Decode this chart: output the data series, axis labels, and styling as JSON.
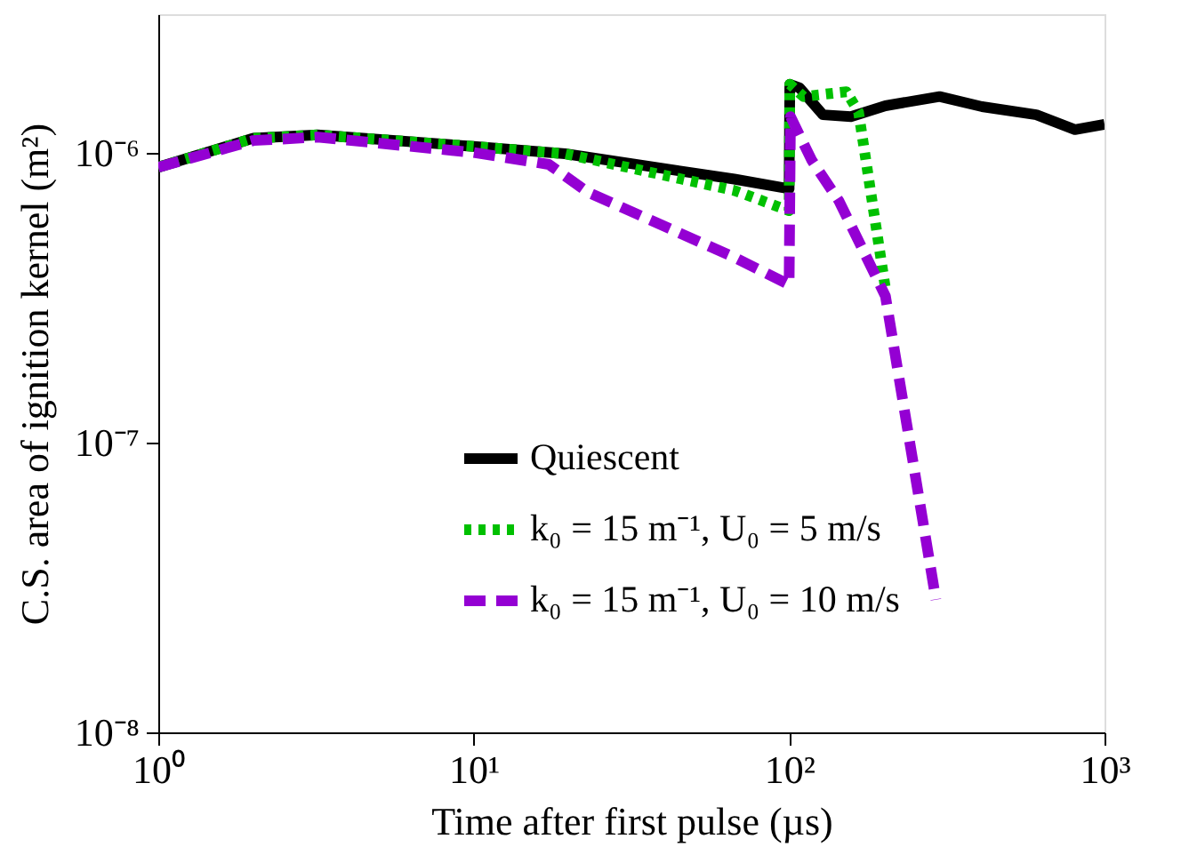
{
  "chart_data": {
    "type": "line",
    "xlabel": "Time after first pulse (µs)",
    "ylabel": "C.S. area of ignition kernel (m²)",
    "log": "xy",
    "xlim": [
      1,
      1000
    ],
    "ylim": [
      1e-08,
      3e-06
    ],
    "xticks": [
      {
        "value": 1,
        "label": "10⁰"
      },
      {
        "value": 10,
        "label": "10¹"
      },
      {
        "value": 100,
        "label": "10²"
      },
      {
        "value": 1000,
        "label": "10³"
      }
    ],
    "yticks": [
      {
        "value": 1e-08,
        "label": "10⁻⁸"
      },
      {
        "value": 1e-07,
        "label": "10⁻⁷"
      },
      {
        "value": 1e-06,
        "label": "10⁻⁶"
      }
    ],
    "grid": false,
    "legend": "bottom right",
    "series": [
      {
        "name": "Quiescent",
        "color": "#000000",
        "line_style": "solid",
        "x": [
          1,
          2,
          3.2,
          10,
          19.5,
          67,
          100,
          100.5,
          108,
          128,
          157,
          202,
          300,
          409,
          608,
          806,
          1000
        ],
        "values": [
          8.9e-07,
          1.12e-06,
          1.15e-06,
          1.05e-06,
          9.9e-07,
          8.1e-07,
          7.5e-07,
          1.72e-06,
          1.67e-06,
          1.35e-06,
          1.33e-06,
          1.45e-06,
          1.56e-06,
          1.44e-06,
          1.35e-06,
          1.2e-06,
          1.25e-06
        ]
      },
      {
        "name": "k₀ = 15 m⁻¹, U₀ = 5 m/s",
        "color": "#00c000",
        "line_style": "dotted",
        "x": [
          1,
          2,
          3.2,
          10,
          19.5,
          67,
          100,
          100.5,
          111,
          152,
          166,
          202
        ],
        "values": [
          8.9e-07,
          1.12e-06,
          1.15e-06,
          1.05e-06,
          9.9e-07,
          7.4e-07,
          6.3e-07,
          1.72e-06,
          1.56e-06,
          1.62e-06,
          1.38e-06,
          3.4e-07
        ]
      },
      {
        "name": "k₀ = 15 m⁻¹, U₀ = 10 m/s",
        "color": "#9400d3",
        "line_style": "dashed",
        "x": [
          1,
          2,
          3.2,
          10,
          17.3,
          23,
          67,
          100,
          101,
          118,
          144,
          202,
          292
        ],
        "values": [
          8.9e-07,
          1.1e-06,
          1.13e-06,
          1e-06,
          9.1e-07,
          7.3e-07,
          4.35e-07,
          3.5e-07,
          1.33e-06,
          9.4e-07,
          6.8e-07,
          3.2e-07,
          2.87e-08
        ]
      }
    ]
  }
}
